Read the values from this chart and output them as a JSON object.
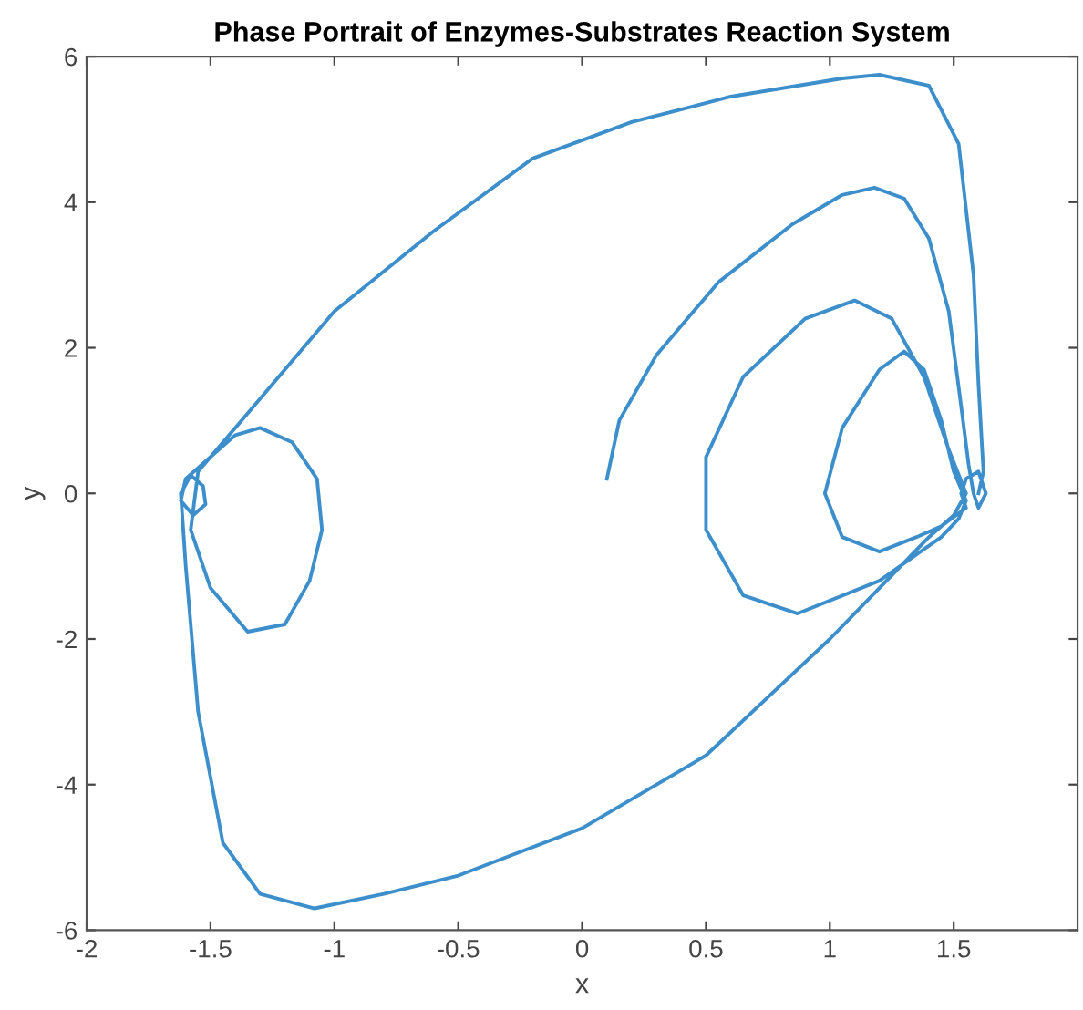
{
  "chart_data": {
    "type": "line",
    "title": "Phase Portrait of Enzymes-Substrates Reaction System",
    "xlabel": "x",
    "ylabel": "y",
    "xlim": [
      -2,
      2
    ],
    "ylim": [
      -6,
      6
    ],
    "xticks": [
      -2,
      -1.5,
      -1,
      -0.5,
      0,
      0.5,
      1,
      1.5
    ],
    "yticks": [
      -6,
      -4,
      -2,
      0,
      2,
      4,
      6
    ],
    "grid": false,
    "marker": "none",
    "line_style": "solid",
    "series": [
      {
        "color": "#3d8fcc",
        "x": [
          0.1,
          0.15,
          0.3,
          0.55,
          0.85,
          1.05,
          1.18,
          1.3,
          1.4,
          1.48,
          1.53,
          1.56,
          1.58,
          1.6,
          1.63,
          1.6,
          1.55,
          1.53,
          1.55,
          1.45,
          1.35,
          1.2,
          1.05,
          0.98,
          1.05,
          1.2,
          1.3,
          1.38,
          1.45,
          1.5,
          1.55,
          1.52,
          1.45,
          1.2,
          0.87,
          0.65,
          0.5,
          0.5,
          0.65,
          0.9,
          1.1,
          1.25,
          1.38,
          1.48,
          1.55,
          1.5,
          1.4,
          1.2,
          1.0,
          0.5,
          0.0,
          -0.5,
          -0.8,
          -1.08,
          -1.3,
          -1.45,
          -1.55,
          -1.6,
          -1.62,
          -1.58,
          -1.53,
          -1.52,
          -1.57,
          -1.62,
          -1.6,
          -1.5,
          -1.4,
          -1.3,
          -1.17,
          -1.07,
          -1.05,
          -1.1,
          -1.2,
          -1.35,
          -1.5,
          -1.58,
          -1.55,
          -1.3,
          -1.0,
          -0.6,
          -0.2,
          0.2,
          0.6,
          1.05,
          1.2,
          1.4,
          1.52,
          1.58,
          1.6,
          1.62,
          1.6
        ],
        "values": [
          0.2,
          1.0,
          1.9,
          2.9,
          3.7,
          4.1,
          4.2,
          4.05,
          3.5,
          2.5,
          1.2,
          0.4,
          0.0,
          -0.2,
          0.0,
          0.3,
          0.2,
          0.0,
          -0.2,
          -0.45,
          -0.6,
          -0.8,
          -0.6,
          0.0,
          0.9,
          1.7,
          1.95,
          1.7,
          1.0,
          0.3,
          -0.1,
          -0.35,
          -0.6,
          -1.2,
          -1.65,
          -1.4,
          -0.5,
          0.5,
          1.6,
          2.4,
          2.65,
          2.4,
          1.6,
          0.6,
          0.0,
          -0.3,
          -0.6,
          -1.3,
          -2.0,
          -3.6,
          -4.6,
          -5.25,
          -5.5,
          -5.7,
          -5.5,
          -4.8,
          -3.0,
          -1.0,
          0.0,
          0.25,
          0.1,
          -0.15,
          -0.3,
          -0.1,
          0.2,
          0.5,
          0.8,
          0.9,
          0.7,
          0.2,
          -0.5,
          -1.2,
          -1.8,
          -1.9,
          -1.3,
          -0.5,
          0.3,
          1.3,
          2.5,
          3.6,
          4.6,
          5.1,
          5.45,
          5.7,
          5.75,
          5.6,
          4.8,
          3.0,
          1.5,
          0.3,
          0.0
        ]
      }
    ]
  }
}
